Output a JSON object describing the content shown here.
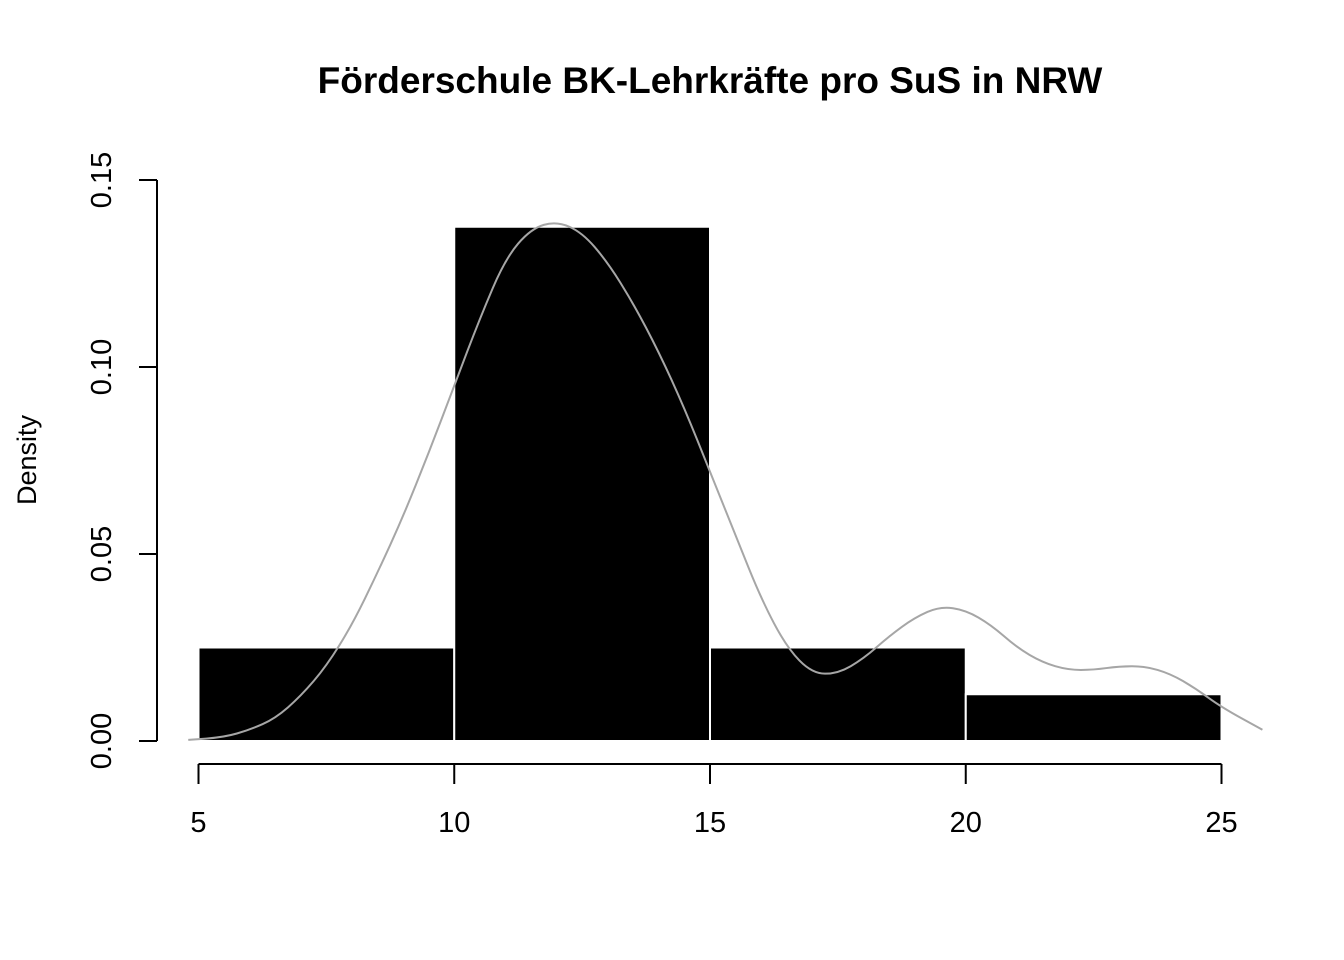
{
  "chart_data": {
    "type": "bar",
    "title": "Förderschule BK-Lehrkräfte pro SuS in NRW",
    "xlabel": "",
    "ylabel": "Density",
    "bins": [
      {
        "from": 5,
        "to": 10,
        "density": 0.025
      },
      {
        "from": 10,
        "to": 15,
        "density": 0.1375
      },
      {
        "from": 15,
        "to": 20,
        "density": 0.025
      },
      {
        "from": 20,
        "to": 25,
        "density": 0.0125
      }
    ],
    "xlim": [
      5,
      25
    ],
    "ylim": [
      0,
      0.15
    ],
    "x_ticks": [
      "5",
      "10",
      "15",
      "20",
      "25"
    ],
    "y_ticks": [
      "0.00",
      "0.05",
      "0.10",
      "0.15"
    ],
    "density_curve": {
      "color": "#a6a6a6",
      "x": [
        4.8,
        5.5,
        6,
        6.5,
        7,
        7.5,
        8,
        8.5,
        9,
        9.5,
        10,
        10.5,
        11,
        11.5,
        12,
        12.5,
        13,
        13.5,
        14,
        14.5,
        15,
        15.5,
        16,
        16.5,
        17,
        17.5,
        18,
        18.5,
        19,
        19.5,
        20,
        20.5,
        21,
        21.5,
        22,
        22.5,
        23,
        23.5,
        24,
        24.5,
        25,
        25.8
      ],
      "y": [
        0.0003,
        0.001,
        0.003,
        0.006,
        0.012,
        0.02,
        0.031,
        0.045,
        0.06,
        0.077,
        0.095,
        0.113,
        0.129,
        0.137,
        0.139,
        0.136,
        0.128,
        0.117,
        0.104,
        0.089,
        0.072,
        0.055,
        0.038,
        0.025,
        0.018,
        0.018,
        0.022,
        0.028,
        0.033,
        0.036,
        0.035,
        0.031,
        0.025,
        0.021,
        0.019,
        0.019,
        0.02,
        0.02,
        0.018,
        0.014,
        0.009,
        0.003
      ]
    },
    "bar_color": "#000000",
    "grid": false,
    "legend": "none"
  }
}
